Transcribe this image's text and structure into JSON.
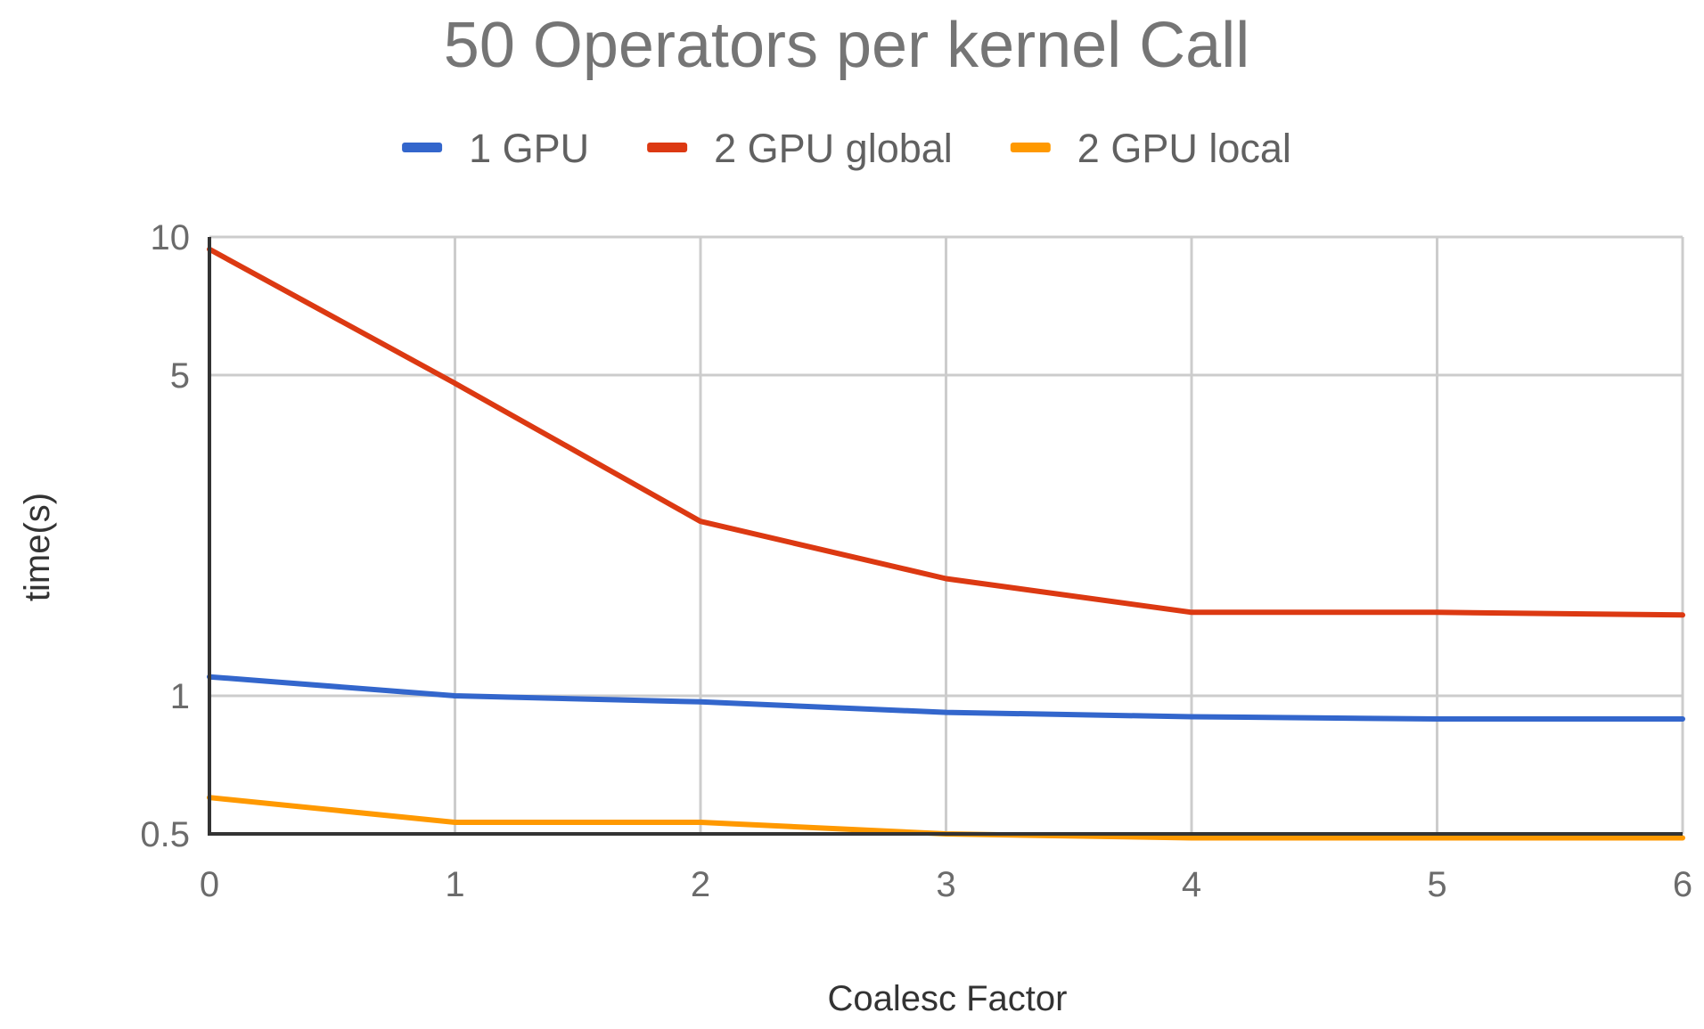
{
  "chart_data": {
    "type": "line",
    "title": "50 Operators per kernel Call",
    "xlabel": "Coalesc Factor",
    "ylabel": "time(s)",
    "yscale": "log",
    "x": [
      0,
      1,
      2,
      3,
      4,
      5,
      6
    ],
    "x_ticks": [
      "0",
      "1",
      "2",
      "3",
      "4",
      "5",
      "6"
    ],
    "y_ticks": [
      {
        "value": 10,
        "label": "10"
      },
      {
        "value": 5,
        "label": "5"
      },
      {
        "value": 1,
        "label": "1"
      },
      {
        "value": 0.5,
        "label": "0.5"
      }
    ],
    "ylim": [
      0.5,
      10
    ],
    "legend_position": "top",
    "grid": true,
    "series": [
      {
        "name": "1 GPU",
        "color": "#3366cc",
        "values": [
          1.1,
          1.0,
          0.97,
          0.92,
          0.9,
          0.89,
          0.89
        ]
      },
      {
        "name": "2 GPU global",
        "color": "#dc3912",
        "values": [
          9.4,
          4.8,
          2.4,
          1.8,
          1.52,
          1.52,
          1.5
        ]
      },
      {
        "name": "2 GPU  local",
        "color": "#ff9900",
        "values": [
          0.6,
          0.53,
          0.53,
          0.5,
          0.49,
          0.49,
          0.49
        ]
      }
    ]
  }
}
